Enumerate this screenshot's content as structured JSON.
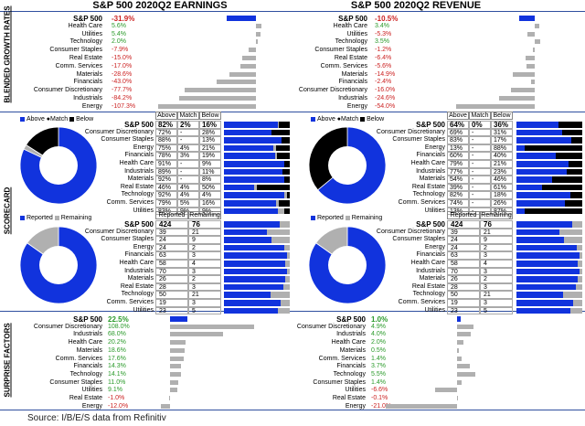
{
  "colors": {
    "blue": "#1133dd",
    "gray": "#b0b0b0",
    "black": "#000000",
    "green": "#2a9a2a",
    "red": "#cc2222",
    "rule": "#2f4f9f"
  },
  "section_labels": {
    "growth": "BLENDED GROWTH RATES",
    "scorecard": "SCORECARD",
    "surprise": "SURPRISE FACTORS"
  },
  "source": "Source: I/B/E/S data from Refinitiv",
  "score_legend": {
    "above": "Above",
    "match": "Match",
    "below": "Below"
  },
  "report_legend": {
    "reported": "Reported",
    "remaining": "Remaining"
  },
  "score_headers": [
    "Above",
    "Match",
    "Below"
  ],
  "report_headers": [
    "Reported",
    "Remaining"
  ],
  "chart_data": [
    {
      "type": "bar",
      "title": "S&P 500 2020Q2 EARNINGS",
      "section": "growth",
      "categories": [
        "S&P 500",
        "Health Care",
        "Utilities",
        "Technology",
        "Consumer Staples",
        "Real Estate",
        "Comm. Services",
        "Materials",
        "Financials",
        "Consumer Discretionary",
        "Industrials",
        "Energy"
      ],
      "labels": [
        "-31.9%",
        "5.6%",
        "5.4%",
        "2.0%",
        "-7.9%",
        "-15.0%",
        "-17.0%",
        "-28.6%",
        "-43.0%",
        "-77.7%",
        "-84.2%",
        "-107.3%"
      ],
      "values": [
        -31.9,
        5.6,
        5.4,
        2.0,
        -7.9,
        -15.0,
        -17.0,
        -28.6,
        -43.0,
        -77.7,
        -84.2,
        -107.3
      ]
    },
    {
      "type": "bar",
      "title": "S&P 500 2020Q2 REVENUE",
      "section": "growth",
      "categories": [
        "S&P 500",
        "Health Care",
        "Utilities",
        "Technology",
        "Consumer Staples",
        "Real Estate",
        "Comm. Services",
        "Materials",
        "Financials",
        "Consumer Discretionary",
        "Industrials",
        "Energy"
      ],
      "labels": [
        "-10.5%",
        "3.4%",
        "-5.3%",
        "3.5%",
        "-1.2%",
        "-6.4%",
        "-5.6%",
        "-14.9%",
        "-2.4%",
        "-16.0%",
        "-24.6%",
        "-54.0%"
      ],
      "values": [
        -10.5,
        3.4,
        -5.3,
        3.5,
        -1.2,
        -6.4,
        -5.6,
        -14.9,
        -2.4,
        -16.0,
        -24.6,
        -54.0
      ]
    },
    {
      "type": "table",
      "section": "scorecard-earnings",
      "donut": {
        "above": 82,
        "match": 2,
        "below": 16
      },
      "rows": [
        {
          "name": "S&P 500",
          "above": "82%",
          "match": "2%",
          "below": "16%",
          "a": 82,
          "m": 2,
          "b": 16
        },
        {
          "name": "Consumer Discretionary",
          "above": "72%",
          "match": "-",
          "below": "28%",
          "a": 72,
          "m": 0,
          "b": 28
        },
        {
          "name": "Consumer Staples",
          "above": "88%",
          "match": "-",
          "below": "13%",
          "a": 88,
          "m": 0,
          "b": 13
        },
        {
          "name": "Energy",
          "above": "75%",
          "match": "4%",
          "below": "21%",
          "a": 75,
          "m": 4,
          "b": 21
        },
        {
          "name": "Financials",
          "above": "78%",
          "match": "3%",
          "below": "19%",
          "a": 78,
          "m": 3,
          "b": 19
        },
        {
          "name": "Health Care",
          "above": "91%",
          "match": "-",
          "below": "9%",
          "a": 91,
          "m": 0,
          "b": 9
        },
        {
          "name": "Industrials",
          "above": "89%",
          "match": "-",
          "below": "11%",
          "a": 89,
          "m": 0,
          "b": 11
        },
        {
          "name": "Materials",
          "above": "92%",
          "match": "-",
          "below": "8%",
          "a": 92,
          "m": 0,
          "b": 8
        },
        {
          "name": "Real Estate",
          "above": "46%",
          "match": "4%",
          "below": "50%",
          "a": 46,
          "m": 4,
          "b": 50
        },
        {
          "name": "Technology",
          "above": "92%",
          "match": "4%",
          "below": "4%",
          "a": 92,
          "m": 4,
          "b": 4
        },
        {
          "name": "Comm. Services",
          "above": "79%",
          "match": "5%",
          "below": "16%",
          "a": 79,
          "m": 5,
          "b": 16
        },
        {
          "name": "Utilities",
          "above": "83%",
          "match": "9%",
          "below": "9%",
          "a": 83,
          "m": 9,
          "b": 9
        }
      ]
    },
    {
      "type": "table",
      "section": "scorecard-revenue",
      "donut": {
        "above": 64,
        "match": 0,
        "below": 36
      },
      "rows": [
        {
          "name": "S&P 500",
          "above": "64%",
          "match": "0%",
          "below": "36%",
          "a": 64,
          "m": 0,
          "b": 36
        },
        {
          "name": "Consumer Discretionary",
          "above": "69%",
          "match": "-",
          "below": "31%",
          "a": 69,
          "m": 0,
          "b": 31
        },
        {
          "name": "Consumer Staples",
          "above": "83%",
          "match": "-",
          "below": "17%",
          "a": 83,
          "m": 0,
          "b": 17
        },
        {
          "name": "Energy",
          "above": "13%",
          "match": "-",
          "below": "88%",
          "a": 13,
          "m": 0,
          "b": 88
        },
        {
          "name": "Financials",
          "above": "60%",
          "match": "-",
          "below": "40%",
          "a": 60,
          "m": 0,
          "b": 40
        },
        {
          "name": "Health Care",
          "above": "79%",
          "match": "-",
          "below": "21%",
          "a": 79,
          "m": 0,
          "b": 21
        },
        {
          "name": "Industrials",
          "above": "77%",
          "match": "-",
          "below": "23%",
          "a": 77,
          "m": 0,
          "b": 23
        },
        {
          "name": "Materials",
          "above": "54%",
          "match": "-",
          "below": "46%",
          "a": 54,
          "m": 0,
          "b": 46
        },
        {
          "name": "Real Estate",
          "above": "39%",
          "match": "-",
          "below": "61%",
          "a": 39,
          "m": 0,
          "b": 61
        },
        {
          "name": "Technology",
          "above": "82%",
          "match": "-",
          "below": "18%",
          "a": 82,
          "m": 0,
          "b": 18
        },
        {
          "name": "Comm. Services",
          "above": "74%",
          "match": "-",
          "below": "26%",
          "a": 74,
          "m": 0,
          "b": 26
        },
        {
          "name": "Utilities",
          "above": "13%",
          "match": "-",
          "below": "87%",
          "a": 13,
          "m": 0,
          "b": 87
        }
      ]
    },
    {
      "type": "table",
      "section": "reported-earnings",
      "donut": {
        "reported": 424,
        "remaining": 76
      },
      "rows": [
        {
          "name": "S&P 500",
          "reported": 424,
          "remaining": 76
        },
        {
          "name": "Consumer Discretionary",
          "reported": 39,
          "remaining": 21
        },
        {
          "name": "Consumer Staples",
          "reported": 24,
          "remaining": 9
        },
        {
          "name": "Energy",
          "reported": 24,
          "remaining": 2
        },
        {
          "name": "Financials",
          "reported": 63,
          "remaining": 3
        },
        {
          "name": "Health Care",
          "reported": 58,
          "remaining": 4
        },
        {
          "name": "Industrials",
          "reported": 70,
          "remaining": 3
        },
        {
          "name": "Materials",
          "reported": 26,
          "remaining": 2
        },
        {
          "name": "Real Estate",
          "reported": 28,
          "remaining": 3
        },
        {
          "name": "Technology",
          "reported": 50,
          "remaining": 21
        },
        {
          "name": "Comm. Services",
          "reported": 19,
          "remaining": 3
        },
        {
          "name": "Utilities",
          "reported": 23,
          "remaining": 5
        }
      ]
    },
    {
      "type": "table",
      "section": "reported-revenue",
      "donut": {
        "reported": 424,
        "remaining": 76
      },
      "rows": [
        {
          "name": "S&P 500",
          "reported": 424,
          "remaining": 76
        },
        {
          "name": "Consumer Discretionary",
          "reported": 39,
          "remaining": 21
        },
        {
          "name": "Consumer Staples",
          "reported": 24,
          "remaining": 9
        },
        {
          "name": "Energy",
          "reported": 24,
          "remaining": 2
        },
        {
          "name": "Financials",
          "reported": 63,
          "remaining": 3
        },
        {
          "name": "Health Care",
          "reported": 58,
          "remaining": 4
        },
        {
          "name": "Industrials",
          "reported": 70,
          "remaining": 3
        },
        {
          "name": "Materials",
          "reported": 26,
          "remaining": 2
        },
        {
          "name": "Real Estate",
          "reported": 28,
          "remaining": 3
        },
        {
          "name": "Technology",
          "reported": 50,
          "remaining": 21
        },
        {
          "name": "Comm. Services",
          "reported": 19,
          "remaining": 3
        },
        {
          "name": "Utilities",
          "reported": 23,
          "remaining": 5
        }
      ]
    },
    {
      "type": "bar",
      "section": "surprise-earnings",
      "categories": [
        "S&P 500",
        "Consumer Discretionary",
        "Industrials",
        "Health Care",
        "Materials",
        "Comm. Services",
        "Financials",
        "Technology",
        "Consumer Staples",
        "Utilities",
        "Real Estate",
        "Energy"
      ],
      "labels": [
        "22.5%",
        "108.0%",
        "68.0%",
        "20.2%",
        "18.6%",
        "17.6%",
        "14.3%",
        "14.1%",
        "11.0%",
        "9.1%",
        "-1.0%",
        "-12.0%"
      ],
      "values": [
        22.5,
        108.0,
        68.0,
        20.2,
        18.6,
        17.6,
        14.3,
        14.1,
        11.0,
        9.1,
        -1.0,
        -12.0
      ]
    },
    {
      "type": "bar",
      "section": "surprise-revenue",
      "categories": [
        "S&P 500",
        "Consumer Discretionary",
        "Industrials",
        "Health Care",
        "Materials",
        "Comm. Services",
        "Financials",
        "Technology",
        "Consumer Staples",
        "Utilities",
        "Real Estate",
        "Energy"
      ],
      "labels": [
        "1.0%",
        "4.9%",
        "4.0%",
        "2.0%",
        "0.5%",
        "1.4%",
        "3.7%",
        "5.5%",
        "1.4%",
        "-6.6%",
        "-0.1%",
        "-21.0%"
      ],
      "values": [
        1.0,
        4.9,
        4.0,
        2.0,
        0.5,
        1.4,
        3.7,
        5.5,
        1.4,
        -6.6,
        -0.1,
        -21.0
      ]
    }
  ]
}
